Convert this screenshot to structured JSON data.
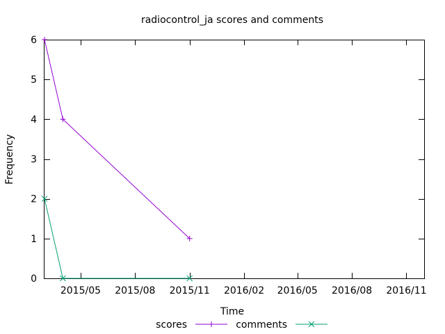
{
  "chart_data": {
    "type": "line",
    "title": "radiocontrol_ja scores and comments",
    "xlabel": "Time",
    "ylabel": "Frequency",
    "x_type": "date",
    "xlim": [
      "2015-03-01",
      "2016-12-01"
    ],
    "x_tick_labels": [
      "2015/05",
      "2015/08",
      "2015/11",
      "2016/02",
      "2016/05",
      "2016/08",
      "2016/11"
    ],
    "x_tick_dates": [
      "2015-05-01",
      "2015-08-01",
      "2015-11-01",
      "2016-02-01",
      "2016-05-01",
      "2016-08-01",
      "2016-11-01"
    ],
    "ylim": [
      0,
      6
    ],
    "y_ticks": [
      0,
      1,
      2,
      3,
      4,
      5,
      6
    ],
    "grid": false,
    "legend_position": "bottom",
    "series": [
      {
        "name": "scores",
        "color": "#9400d3",
        "marker": "plus",
        "points": [
          {
            "x": "2015-03-01",
            "y": 6
          },
          {
            "x": "2015-04-01",
            "y": 4
          },
          {
            "x": "2015-11-01",
            "y": 1
          }
        ]
      },
      {
        "name": "comments",
        "color": "#009e73",
        "marker": "cross",
        "points": [
          {
            "x": "2015-03-01",
            "y": 2
          },
          {
            "x": "2015-04-01",
            "y": 0
          },
          {
            "x": "2015-11-01",
            "y": 0
          }
        ]
      }
    ]
  }
}
